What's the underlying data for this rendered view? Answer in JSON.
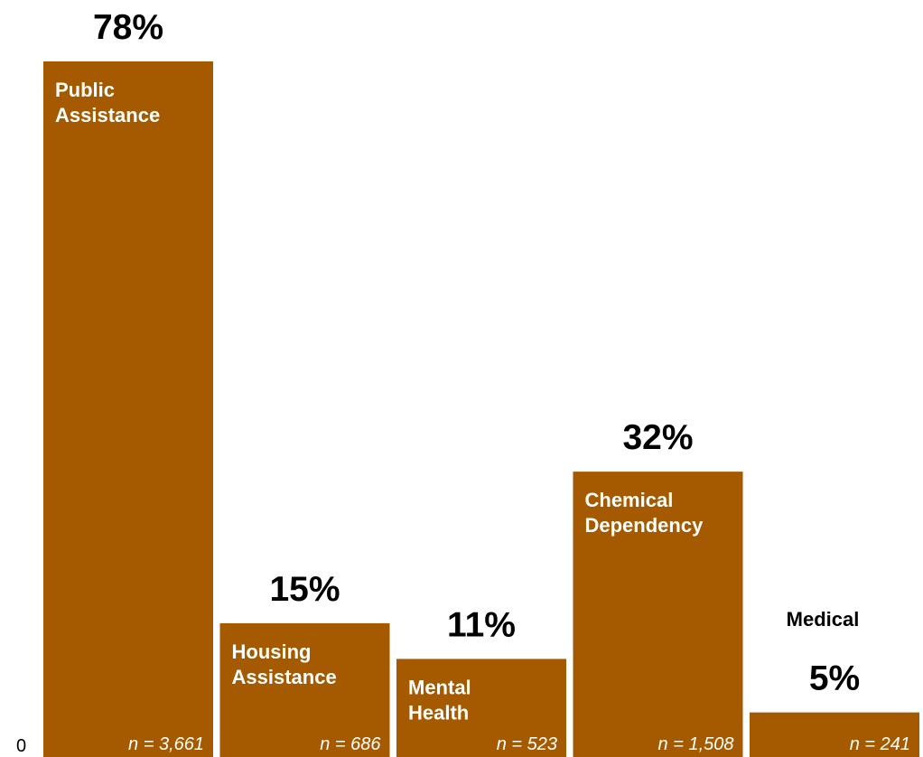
{
  "chart_data": {
    "type": "bar",
    "categories": [
      "Public Assistance",
      "Housing Assistance",
      "Mental Health",
      "Chemical Dependency",
      "Medical"
    ],
    "category_label_lines": [
      [
        "Public",
        "Assistance"
      ],
      [
        "Housing",
        "Assistance"
      ],
      [
        "Mental",
        "Health"
      ],
      [
        "Chemical",
        "Dependency"
      ],
      [
        "Medical"
      ]
    ],
    "values": [
      78,
      15,
      11,
      32,
      5
    ],
    "value_labels": [
      "78%",
      "15%",
      "11%",
      "32%",
      "5%"
    ],
    "n_labels": [
      "n = 3,661",
      "n = 686",
      "n = 523",
      "n = 1,508",
      "n = 241"
    ],
    "ylim": [
      0,
      78
    ],
    "y_tick_labels": [
      "0"
    ],
    "bar_color": "#A65A00",
    "grid": false,
    "legend": "none",
    "title": "",
    "xlabel": "",
    "ylabel": ""
  }
}
